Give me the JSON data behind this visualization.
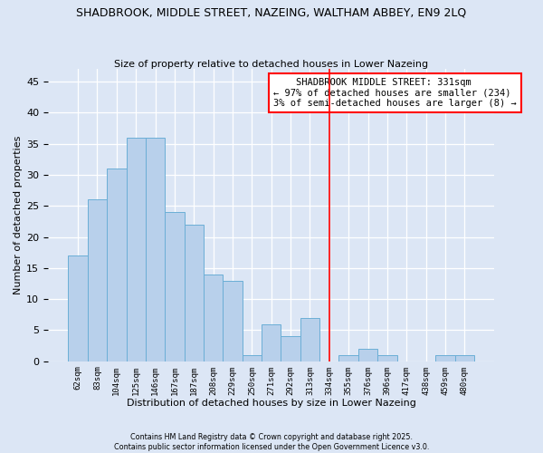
{
  "title": "SHADBROOK, MIDDLE STREET, NAZEING, WALTHAM ABBEY, EN9 2LQ",
  "subtitle": "Size of property relative to detached houses in Lower Nazeing",
  "xlabel": "Distribution of detached houses by size in Lower Nazeing",
  "ylabel": "Number of detached properties",
  "bar_labels": [
    "62sqm",
    "83sqm",
    "104sqm",
    "125sqm",
    "146sqm",
    "167sqm",
    "187sqm",
    "208sqm",
    "229sqm",
    "250sqm",
    "271sqm",
    "292sqm",
    "313sqm",
    "334sqm",
    "355sqm",
    "376sqm",
    "396sqm",
    "417sqm",
    "438sqm",
    "459sqm",
    "480sqm"
  ],
  "bar_values": [
    17,
    26,
    31,
    36,
    36,
    24,
    22,
    14,
    13,
    1,
    6,
    4,
    7,
    0,
    1,
    2,
    1,
    0,
    0,
    1,
    1
  ],
  "bar_color": "#b8d0eb",
  "bar_edge_color": "#6baed6",
  "vline_x": 13.0,
  "vline_color": "red",
  "annotation_text": "    SHADBROOK MIDDLE STREET: 331sqm\n← 97% of detached houses are smaller (234)\n3% of semi-detached houses are larger (8) →",
  "ylim": [
    0,
    47
  ],
  "yticks": [
    0,
    5,
    10,
    15,
    20,
    25,
    30,
    35,
    40,
    45
  ],
  "bg_color": "#dce6f5",
  "footer_line1": "Contains HM Land Registry data © Crown copyright and database right 2025.",
  "footer_line2": "Contains public sector information licensed under the Open Government Licence v3.0."
}
